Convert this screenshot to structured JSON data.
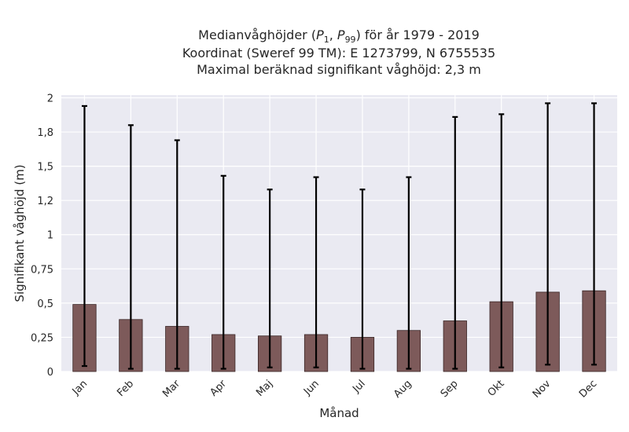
{
  "chart_data": {
    "type": "bar",
    "title_lines": [
      "Medianvåghöjder (P1, P99) för år 1979 - 2019",
      "Koordinat (Sweref 99 TM): E 1273799, N 6755535",
      "Maximal beräknad signifikant våghöjd: 2,3 m"
    ],
    "title_math": {
      "prefix": "Medianvåghöjder (",
      "p1_base": "P",
      "p1_sub": "1",
      "p99_base": "P",
      "p99_sub": "99",
      "suffix": ") för år 1979 - 2019"
    },
    "xlabel": "Månad",
    "ylabel": "Signifikant våghöjd (m)",
    "categories": [
      "Jan",
      "Feb",
      "Mar",
      "Apr",
      "Maj",
      "Jun",
      "Jul",
      "Aug",
      "Sep",
      "Okt",
      "Nov",
      "Dec"
    ],
    "values": [
      0.49,
      0.38,
      0.33,
      0.27,
      0.26,
      0.27,
      0.25,
      0.3,
      0.37,
      0.51,
      0.58,
      0.59
    ],
    "p1": [
      0.04,
      0.02,
      0.02,
      0.02,
      0.03,
      0.03,
      0.02,
      0.02,
      0.02,
      0.03,
      0.05,
      0.05
    ],
    "p99": [
      1.94,
      1.8,
      1.69,
      1.43,
      1.33,
      1.42,
      1.33,
      1.42,
      1.86,
      1.88,
      1.96,
      1.96
    ],
    "ylim": [
      0,
      2.02
    ],
    "yticks": [
      0,
      0.25,
      0.5,
      0.75,
      1,
      1.25,
      1.5,
      1.75,
      2
    ],
    "ytick_labels": [
      "0",
      "0,25",
      "0,5",
      "0,75",
      "1",
      "1,2",
      "1,5",
      "1,8",
      "2"
    ],
    "grid": true,
    "colors": {
      "bar": "#7d5a5a",
      "bar_edge": "#3a2626",
      "errorbar": "#000000",
      "plot_background": "#eaeaf2",
      "grid": "#ffffff",
      "text": "#262626"
    }
  }
}
